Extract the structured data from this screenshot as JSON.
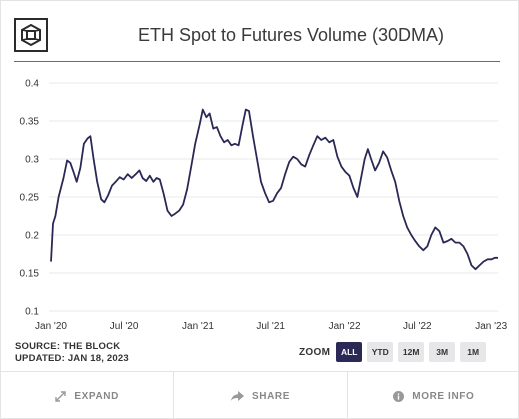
{
  "header": {
    "title": "ETH Spot to Futures Volume (30DMA)"
  },
  "footer": {
    "source": "SOURCE: THE BLOCK",
    "updated": "UPDATED: JAN 18, 2023"
  },
  "zoom": {
    "label": "ZOOM",
    "buttons": [
      "ALL",
      "YTD",
      "12M",
      "3M",
      "1M"
    ],
    "active": "ALL"
  },
  "actions": {
    "expand": "EXPAND",
    "share": "SHARE",
    "more_info": "MORE INFO"
  },
  "colors": {
    "line": "#2a2855",
    "accent": "#a43ad0",
    "grid": "#e9e9e9",
    "active_button": "#2a2855"
  },
  "icons": [
    "logo-icon",
    "expand-icon",
    "share-icon",
    "info-icon"
  ],
  "chart_data": {
    "type": "line",
    "title": "ETH Spot to Futures Volume (30DMA)",
    "xlabel": "",
    "ylabel": "",
    "ylim": [
      0.1,
      0.4
    ],
    "xlim": [
      "2020-01-01",
      "2023-01-18"
    ],
    "grid": true,
    "y_ticks": [
      "0.1",
      "0.15",
      "0.2",
      "0.25",
      "0.3",
      "0.35",
      "0.4"
    ],
    "y_tick_values": [
      0.1,
      0.15,
      0.2,
      0.25,
      0.3,
      0.35,
      0.4
    ],
    "x_ticks": [
      "Jan '20",
      "Jul '20",
      "Jan '21",
      "Jul '21",
      "Jan '22",
      "Jul '22",
      "Jan '23"
    ],
    "x_tick_dates": [
      "2020-01-01",
      "2020-07-01",
      "2021-01-01",
      "2021-07-01",
      "2022-01-01",
      "2022-07-01",
      "2023-01-01"
    ],
    "series": [
      {
        "name": "",
        "points": [
          [
            "2020-01-01",
            0.165
          ],
          [
            "2020-01-06",
            0.215
          ],
          [
            "2020-01-12",
            0.225
          ],
          [
            "2020-01-20",
            0.25
          ],
          [
            "2020-02-01",
            0.275
          ],
          [
            "2020-02-10",
            0.298
          ],
          [
            "2020-02-18",
            0.295
          ],
          [
            "2020-02-26",
            0.283
          ],
          [
            "2020-03-05",
            0.27
          ],
          [
            "2020-03-14",
            0.288
          ],
          [
            "2020-03-23",
            0.32
          ],
          [
            "2020-04-01",
            0.327
          ],
          [
            "2020-04-08",
            0.33
          ],
          [
            "2020-04-16",
            0.3
          ],
          [
            "2020-04-25",
            0.27
          ],
          [
            "2020-05-05",
            0.247
          ],
          [
            "2020-05-13",
            0.243
          ],
          [
            "2020-05-22",
            0.252
          ],
          [
            "2020-06-01",
            0.265
          ],
          [
            "2020-06-10",
            0.27
          ],
          [
            "2020-06-20",
            0.276
          ],
          [
            "2020-06-30",
            0.273
          ],
          [
            "2020-07-10",
            0.28
          ],
          [
            "2020-07-20",
            0.275
          ],
          [
            "2020-07-30",
            0.28
          ],
          [
            "2020-08-08",
            0.285
          ],
          [
            "2020-08-16",
            0.275
          ],
          [
            "2020-08-25",
            0.271
          ],
          [
            "2020-09-03",
            0.278
          ],
          [
            "2020-09-12",
            0.27
          ],
          [
            "2020-09-20",
            0.275
          ],
          [
            "2020-09-28",
            0.273
          ],
          [
            "2020-10-07",
            0.255
          ],
          [
            "2020-10-17",
            0.232
          ],
          [
            "2020-10-27",
            0.225
          ],
          [
            "2020-11-05",
            0.228
          ],
          [
            "2020-11-15",
            0.232
          ],
          [
            "2020-11-25",
            0.24
          ],
          [
            "2020-12-05",
            0.26
          ],
          [
            "2020-12-15",
            0.29
          ],
          [
            "2020-12-25",
            0.32
          ],
          [
            "2021-01-05",
            0.345
          ],
          [
            "2021-01-13",
            0.365
          ],
          [
            "2021-01-22",
            0.355
          ],
          [
            "2021-01-30",
            0.36
          ],
          [
            "2021-02-08",
            0.34
          ],
          [
            "2021-02-17",
            0.342
          ],
          [
            "2021-02-26",
            0.33
          ],
          [
            "2021-03-07",
            0.322
          ],
          [
            "2021-03-16",
            0.325
          ],
          [
            "2021-03-25",
            0.318
          ],
          [
            "2021-04-03",
            0.32
          ],
          [
            "2021-04-12",
            0.318
          ],
          [
            "2021-04-22",
            0.345
          ],
          [
            "2021-04-30",
            0.365
          ],
          [
            "2021-05-08",
            0.363
          ],
          [
            "2021-05-18",
            0.33
          ],
          [
            "2021-05-28",
            0.3
          ],
          [
            "2021-06-07",
            0.27
          ],
          [
            "2021-06-17",
            0.255
          ],
          [
            "2021-06-27",
            0.243
          ],
          [
            "2021-07-07",
            0.245
          ],
          [
            "2021-07-17",
            0.255
          ],
          [
            "2021-07-27",
            0.262
          ],
          [
            "2021-08-06",
            0.28
          ],
          [
            "2021-08-16",
            0.296
          ],
          [
            "2021-08-26",
            0.303
          ],
          [
            "2021-09-05",
            0.3
          ],
          [
            "2021-09-15",
            0.293
          ],
          [
            "2021-09-25",
            0.29
          ],
          [
            "2021-10-05",
            0.305
          ],
          [
            "2021-10-15",
            0.318
          ],
          [
            "2021-10-25",
            0.33
          ],
          [
            "2021-11-04",
            0.325
          ],
          [
            "2021-11-14",
            0.328
          ],
          [
            "2021-11-24",
            0.322
          ],
          [
            "2021-12-04",
            0.325
          ],
          [
            "2021-12-14",
            0.303
          ],
          [
            "2021-12-24",
            0.29
          ],
          [
            "2022-01-03",
            0.283
          ],
          [
            "2022-01-13",
            0.278
          ],
          [
            "2022-01-23",
            0.262
          ],
          [
            "2022-02-02",
            0.25
          ],
          [
            "2022-02-10",
            0.272
          ],
          [
            "2022-02-20",
            0.3
          ],
          [
            "2022-02-28",
            0.313
          ],
          [
            "2022-03-08",
            0.3
          ],
          [
            "2022-03-18",
            0.285
          ],
          [
            "2022-03-28",
            0.295
          ],
          [
            "2022-04-07",
            0.31
          ],
          [
            "2022-04-17",
            0.302
          ],
          [
            "2022-04-27",
            0.285
          ],
          [
            "2022-05-07",
            0.27
          ],
          [
            "2022-05-17",
            0.245
          ],
          [
            "2022-05-27",
            0.225
          ],
          [
            "2022-06-06",
            0.21
          ],
          [
            "2022-06-16",
            0.2
          ],
          [
            "2022-06-26",
            0.192
          ],
          [
            "2022-07-06",
            0.185
          ],
          [
            "2022-07-16",
            0.18
          ],
          [
            "2022-07-26",
            0.185
          ],
          [
            "2022-08-05",
            0.2
          ],
          [
            "2022-08-15",
            0.21
          ],
          [
            "2022-08-25",
            0.205
          ],
          [
            "2022-09-04",
            0.19
          ],
          [
            "2022-09-14",
            0.192
          ],
          [
            "2022-09-24",
            0.195
          ],
          [
            "2022-10-04",
            0.19
          ],
          [
            "2022-10-14",
            0.19
          ],
          [
            "2022-10-24",
            0.185
          ],
          [
            "2022-11-03",
            0.175
          ],
          [
            "2022-11-13",
            0.16
          ],
          [
            "2022-11-23",
            0.155
          ],
          [
            "2022-12-03",
            0.16
          ],
          [
            "2022-12-13",
            0.165
          ],
          [
            "2022-12-23",
            0.168
          ],
          [
            "2023-01-02",
            0.168
          ],
          [
            "2023-01-10",
            0.17
          ],
          [
            "2023-01-18",
            0.17
          ]
        ]
      }
    ]
  }
}
